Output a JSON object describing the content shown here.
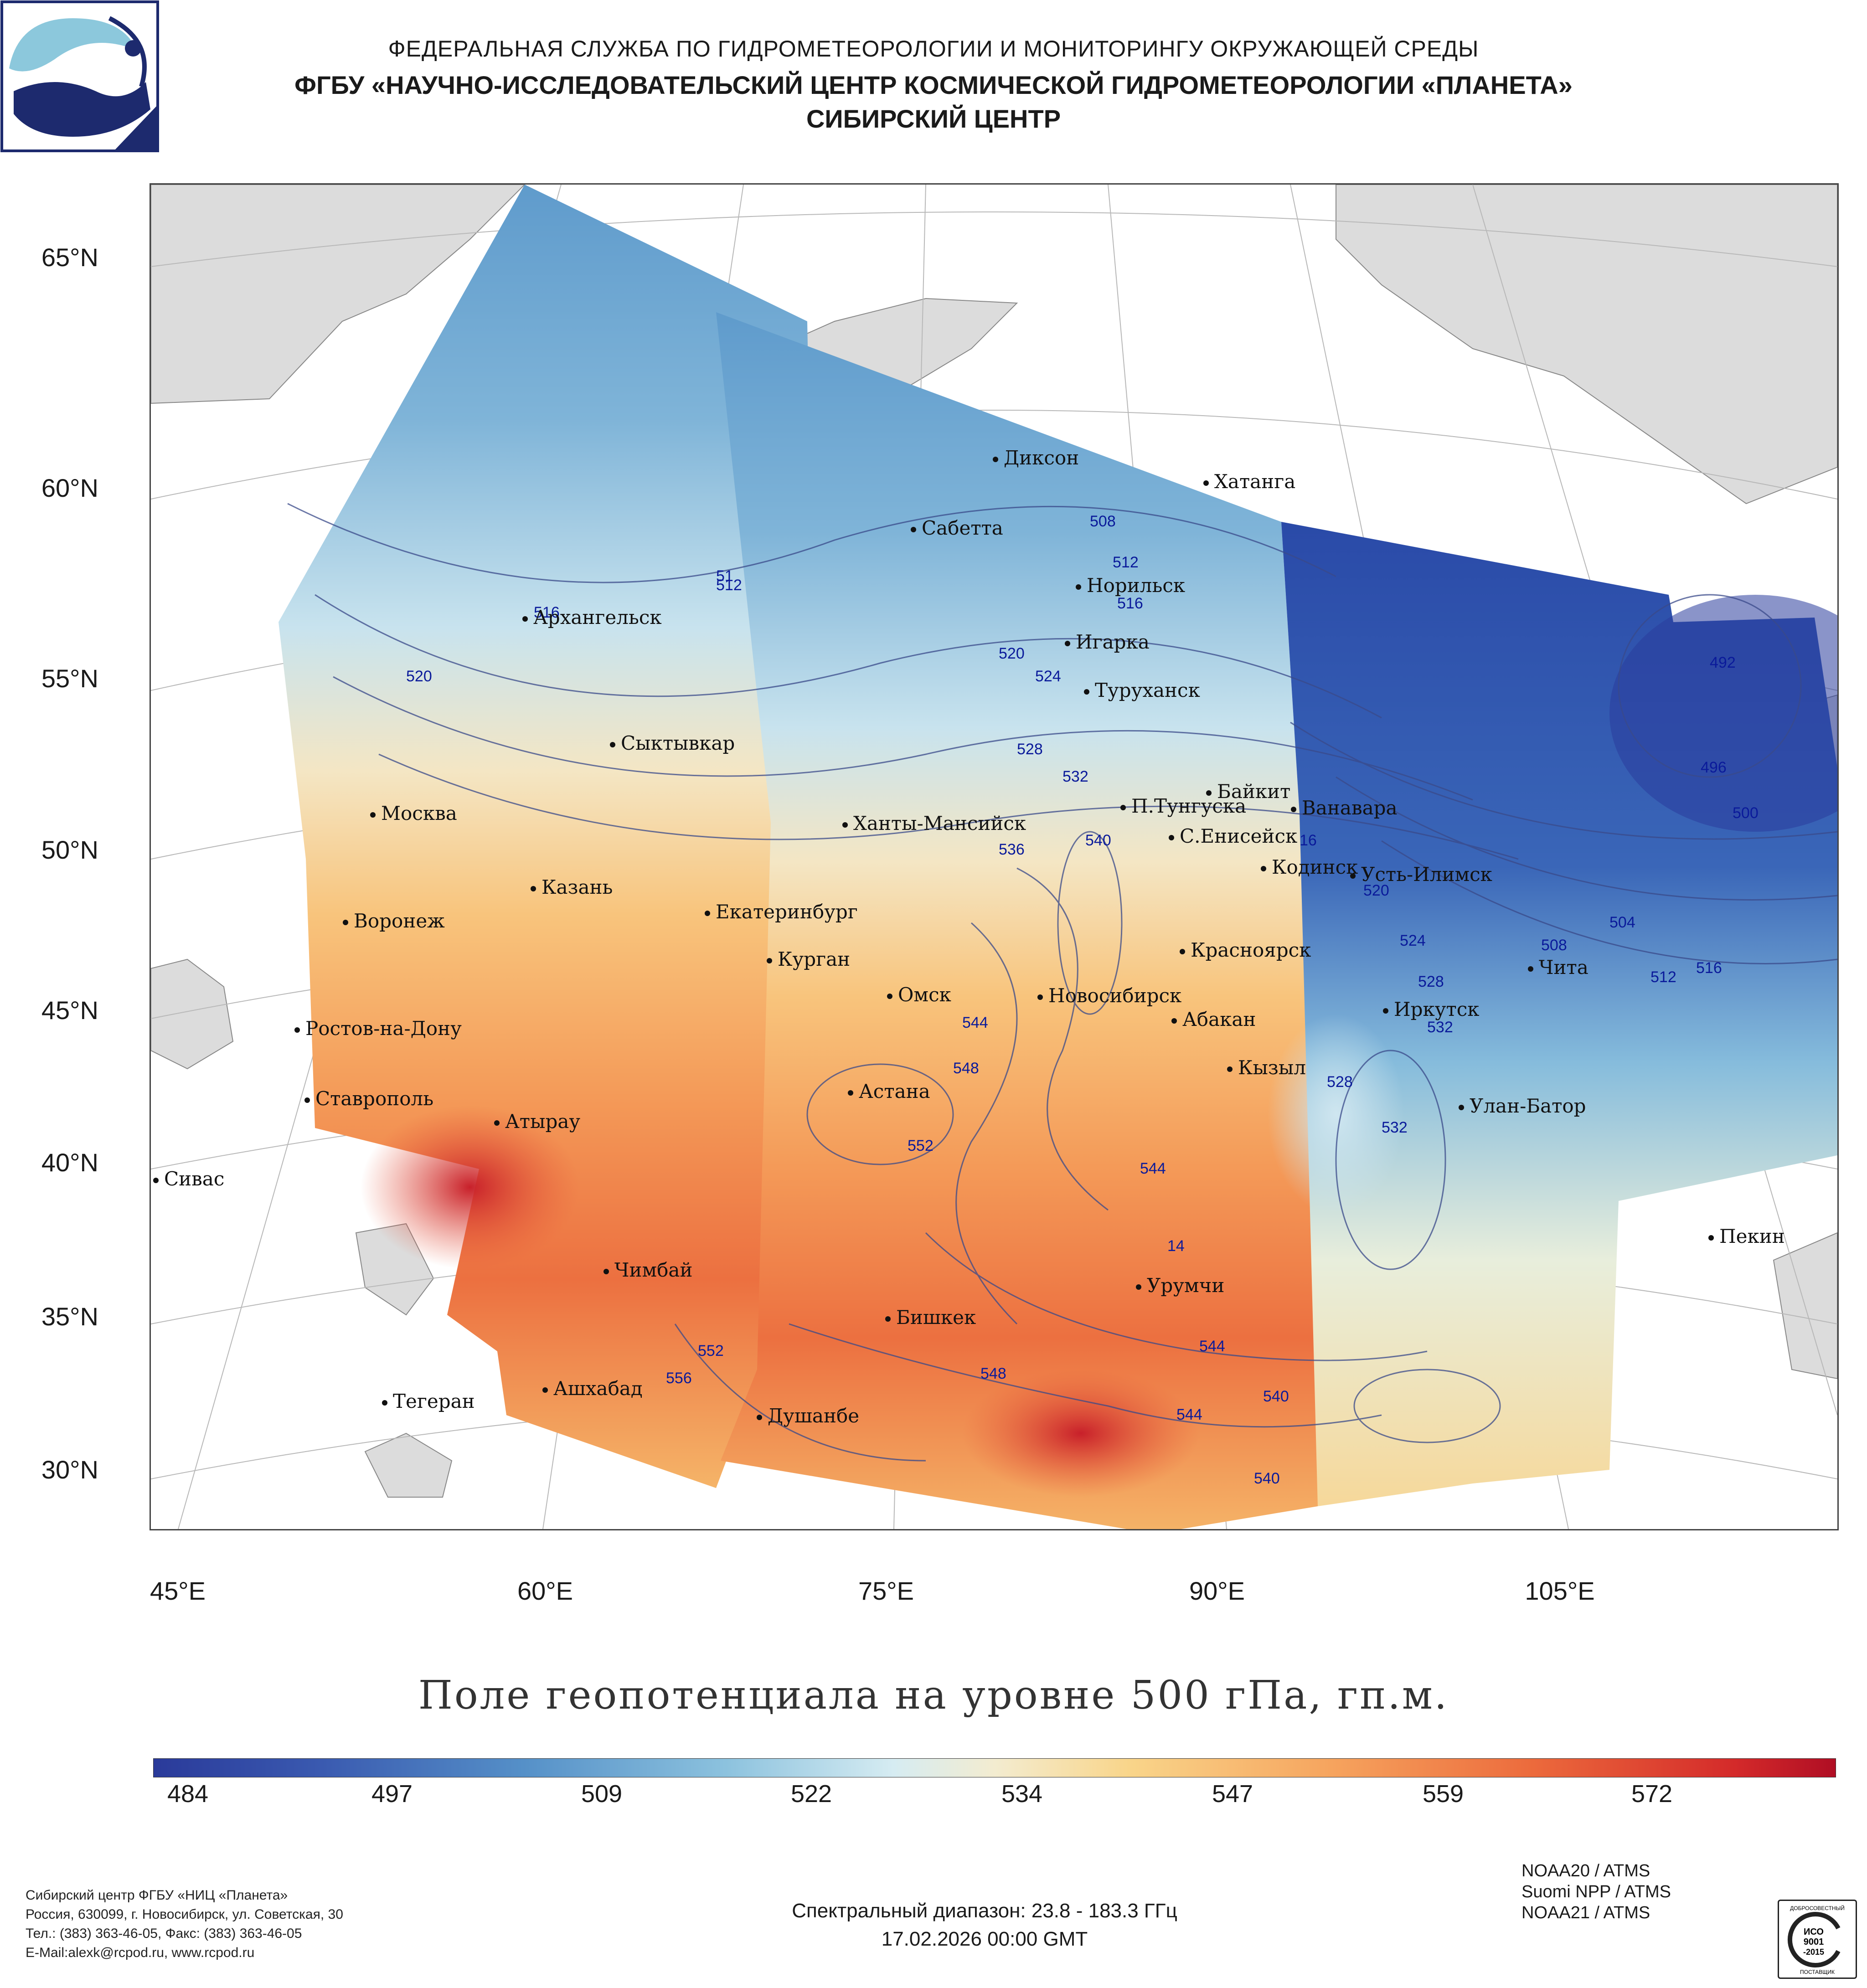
{
  "header": {
    "line1": "ФЕДЕРАЛЬНАЯ СЛУЖБА ПО ГИДРОМЕТЕОРОЛОГИИ И МОНИТОРИНГУ ОКРУЖАЮЩЕЙ СРЕДЫ",
    "line2": "ФГБУ «НАУЧНО-ИССЛЕДОВАТЕЛЬСКИЙ ЦЕНТР КОСМИЧЕСКОЙ ГИДРОМЕТЕОРОЛОГИИ «ПЛАНЕТА»",
    "line3": "СИБИРСКИЙ ЦЕНТР"
  },
  "axes": {
    "lat_labels": [
      "65°N",
      "60°N",
      "55°N",
      "50°N",
      "45°N",
      "40°N",
      "35°N",
      "30°N"
    ],
    "lon_labels": [
      "45°E",
      "60°E",
      "75°E",
      "90°E",
      "105°E"
    ]
  },
  "cities": [
    "Диксон",
    "Хатанга",
    "Сабетта",
    "Норильск",
    "Архангельск",
    "Игарка",
    "Туруханск",
    "Сыктывкар",
    "Байкит",
    "Москва",
    "П.Тунгуска",
    "Ванавара",
    "Ханты-Мансийск",
    "С.Енисейск",
    "Кодинск",
    "Усть-Илимск",
    "Казань",
    "Екатеринбург",
    "Воронеж",
    "Красноярск",
    "Курган",
    "Чита",
    "Омск",
    "Новосибирск",
    "Иркутск",
    "Абакан",
    "Ростов-на-Дону",
    "Кызыл",
    "Астана",
    "Ставрополь",
    "Улан-Батор",
    "Атырау",
    "Сивас",
    "Пекин",
    "Чимбай",
    "Урумчи",
    "Бишкек",
    "Ашхабад",
    "Тегеран",
    "Душанбе"
  ],
  "contour_labels": [
    "508",
    "512",
    "516",
    "520",
    "524",
    "528",
    "532",
    "536",
    "540",
    "544",
    "548",
    "552",
    "556",
    "492",
    "496",
    "500",
    "504",
    "508",
    "512",
    "516",
    "520",
    "524",
    "528",
    "532",
    "528",
    "532",
    "540",
    "544",
    "544",
    "548",
    "552",
    "540",
    "544",
    "520",
    "516",
    "512",
    "14",
    "16",
    "51"
  ],
  "map_title": "Поле геопотенциала на уровне 500 гПа, гп.м.",
  "colorbar": {
    "ticks": [
      "484",
      "497",
      "509",
      "522",
      "534",
      "547",
      "559",
      "572"
    ],
    "min": 484,
    "max": 578
  },
  "footer": {
    "org_line1": "Сибирский центр ФГБУ «НИЦ «Планета»",
    "org_line2": "Россия, 630099, г. Новосибирск, ул. Советская, 30",
    "org_line3": "Тел.: (383) 363-46-05, Факс: (383) 363-46-05",
    "org_line4": "E-Mail:alexk@rcpod.ru, www.rcpod.ru",
    "spectral": "Спектральный диапазон: 23.8 - 183.3 ГГц",
    "datetime": "17.02.2026 00:00 GMT",
    "instruments": [
      "NOAA20 / ATMS",
      "Suomi NPP / ATMS",
      "NOAA21 / ATMS"
    ],
    "iso_badge": [
      "ДОБРОСОВЕСТНЫЙ",
      "ИСО",
      "9001",
      "-2015",
      "ПОСТАВЩИК"
    ]
  },
  "colors": {
    "cold": "#2a3a9a",
    "mid": "#f3ecd0",
    "warm": "#b00e24",
    "land": "#dcdcdc",
    "contour": "#3a4a8a"
  }
}
